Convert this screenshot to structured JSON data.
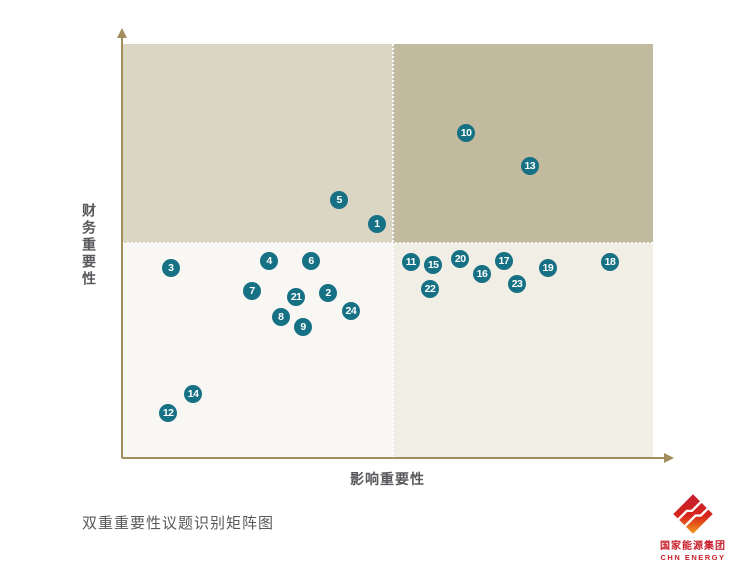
{
  "figure": {
    "caption": "双重重要性议题识别矩阵图"
  },
  "logo": {
    "name_cn": "国家能源集团",
    "name_en": "CHN ENERGY",
    "icon": "chn-energy-diamond-icon"
  },
  "colors": {
    "dot_fill": "#177185",
    "axis": "#a18e5c",
    "label_gray": "#58595c",
    "brand_red": "#c8202c",
    "quad_top_left": "#dbd6c3",
    "quad_top_right": "#c2ba9f",
    "quad_bottom_left": "#f8f7f3",
    "quad_bottom_right": "#f0eee5"
  },
  "chart_data": {
    "type": "scatter",
    "title": "双重重要性议题识别矩阵图",
    "xlabel": "影响重要性",
    "ylabel": "财务重要性",
    "xlim": [
      0,
      100
    ],
    "ylim": [
      0,
      100
    ],
    "grid": false,
    "legend": "none",
    "quadrant_split": {
      "x": 51,
      "y": 52
    },
    "points": [
      {
        "id": 1,
        "x": 48.0,
        "y": 56.5
      },
      {
        "id": 2,
        "x": 38.8,
        "y": 39.9
      },
      {
        "id": 3,
        "x": 9.2,
        "y": 45.9
      },
      {
        "id": 4,
        "x": 27.7,
        "y": 47.6
      },
      {
        "id": 5,
        "x": 40.9,
        "y": 62.3
      },
      {
        "id": 6,
        "x": 35.6,
        "y": 47.6
      },
      {
        "id": 7,
        "x": 24.5,
        "y": 40.3
      },
      {
        "id": 8,
        "x": 29.9,
        "y": 34.1
      },
      {
        "id": 9,
        "x": 34.1,
        "y": 31.6
      },
      {
        "id": 10,
        "x": 64.8,
        "y": 78.5
      },
      {
        "id": 11,
        "x": 54.4,
        "y": 47.3
      },
      {
        "id": 12,
        "x": 8.7,
        "y": 10.9
      },
      {
        "id": 13,
        "x": 76.8,
        "y": 70.5
      },
      {
        "id": 14,
        "x": 13.4,
        "y": 15.5
      },
      {
        "id": 15,
        "x": 58.6,
        "y": 46.6
      },
      {
        "id": 16,
        "x": 67.8,
        "y": 44.4
      },
      {
        "id": 17,
        "x": 71.9,
        "y": 47.6
      },
      {
        "id": 18,
        "x": 91.9,
        "y": 47.3
      },
      {
        "id": 19,
        "x": 80.2,
        "y": 45.9
      },
      {
        "id": 20,
        "x": 63.7,
        "y": 48.1
      },
      {
        "id": 21,
        "x": 32.8,
        "y": 38.9
      },
      {
        "id": 22,
        "x": 58.0,
        "y": 40.8
      },
      {
        "id": 23,
        "x": 74.4,
        "y": 42.0
      },
      {
        "id": 24,
        "x": 43.1,
        "y": 35.5
      }
    ]
  }
}
